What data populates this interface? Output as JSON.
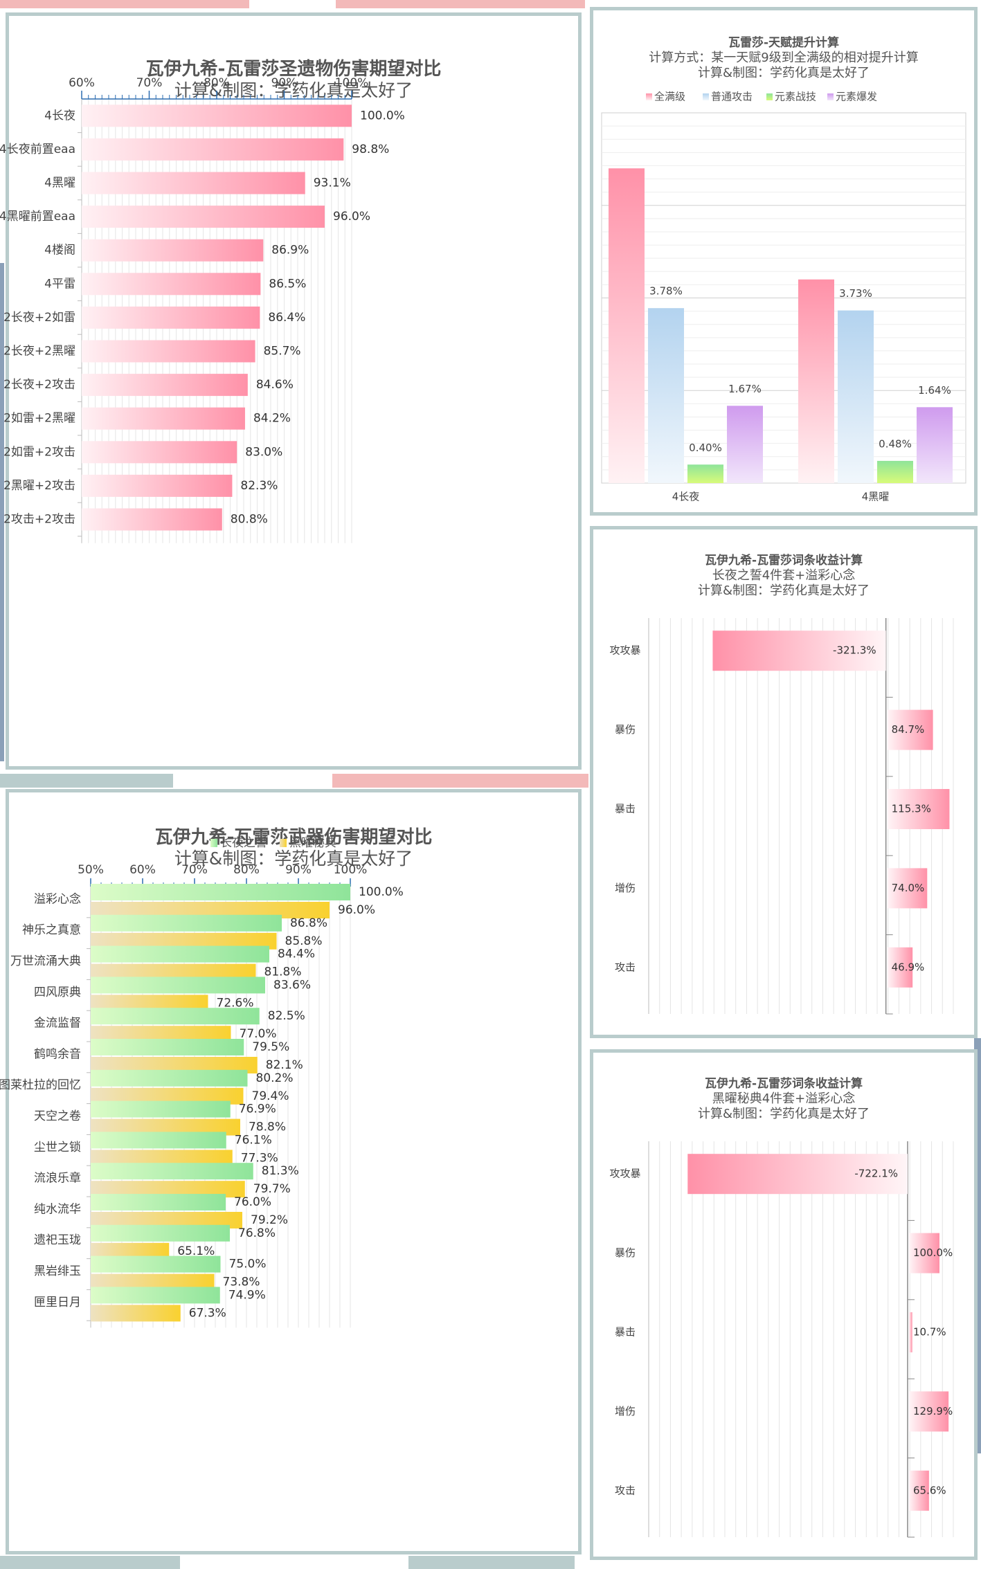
{
  "colors": {
    "pink": "#ff91a8",
    "pink_light": "#fff1f4",
    "blue_bar": "#b3d3ef",
    "green_bar": "#8fe49a",
    "green_light": "#dcfcc8",
    "yellow_bar": "#f9d12f",
    "yellow_light": "#eee2c2",
    "purple_bar": "#cf9bee",
    "frame": "#b9cccc"
  },
  "artifact_chart": {
    "title": "瓦伊九希-瓦雷莎圣遗物伤害期望对比",
    "subtitle": "计算&制图：学药化真是太好了",
    "chart_data": {
      "type": "bar",
      "orientation": "horizontal",
      "xlim": [
        60,
        100
      ],
      "ticks": [
        "60%",
        "70%",
        "80%",
        "90%",
        "100%"
      ],
      "categories": [
        "4长夜",
        "4长夜前置eaa",
        "4黑曜",
        "4黑曜前置eaa",
        "4楼阁",
        "4平雷",
        "2长夜+2如雷",
        "2长夜+2黑曜",
        "2长夜+2攻击",
        "2如雷+2黑曜",
        "2如雷+2攻击",
        "2黑曜+2攻击",
        "2攻击+2攻击"
      ],
      "values": [
        100.0,
        98.8,
        93.1,
        96.0,
        86.9,
        86.5,
        86.4,
        85.7,
        84.6,
        84.2,
        83.0,
        82.3,
        80.8
      ],
      "labels": [
        "100.0%",
        "98.8%",
        "93.1%",
        "96.0%",
        "86.9%",
        "86.5%",
        "86.4%",
        "85.7%",
        "84.6%",
        "84.2%",
        "83.0%",
        "82.3%",
        "80.8%"
      ],
      "grid": true
    }
  },
  "weapon_chart": {
    "title": "瓦伊九希-瓦雷莎武器伤害期望对比",
    "subtitle": "计算&制图：学药化真是太好了",
    "chart_data": {
      "type": "bar",
      "orientation": "horizontal",
      "xlim": [
        50,
        100
      ],
      "ticks": [
        "50%",
        "60%",
        "70%",
        "80%",
        "90%",
        "100%"
      ],
      "legend_position": "top",
      "categories": [
        "溢彩心念",
        "神乐之真意",
        "万世流涌大典",
        "四风原典",
        "金流监督",
        "鹤鸣余音",
        "图莱杜拉的回忆",
        "天空之卷",
        "尘世之锁",
        "流浪乐章",
        "纯水流华",
        "遗祀玉珑",
        "黑岩绯玉",
        "匣里日月"
      ],
      "series": [
        {
          "name": "长夜之誓",
          "values": [
            100.0,
            86.8,
            84.4,
            83.6,
            82.5,
            79.5,
            80.2,
            76.9,
            76.1,
            81.3,
            76.0,
            76.8,
            75.0,
            74.9
          ],
          "labels": [
            "100.0%",
            "86.8%",
            "84.4%",
            "83.6%",
            "82.5%",
            "79.5%",
            "80.2%",
            "76.9%",
            "76.1%",
            "81.3%",
            "76.0%",
            "76.8%",
            "75.0%",
            "74.9%"
          ]
        },
        {
          "name": "黑曜秘典",
          "values": [
            96.0,
            85.8,
            81.8,
            72.6,
            77.0,
            82.1,
            79.4,
            78.8,
            77.3,
            79.7,
            79.2,
            65.1,
            73.8,
            67.3
          ],
          "labels": [
            "96.0%",
            "85.8%",
            "81.8%",
            "72.6%",
            "77.0%",
            "82.1%",
            "79.4%",
            "78.8%",
            "77.3%",
            "79.7%",
            "79.2%",
            "65.1%",
            "73.8%",
            "67.3%"
          ]
        }
      ],
      "grid": true
    }
  },
  "talent_chart": {
    "title": "瓦雷莎-天赋提升计算",
    "subtitle": "计算方式：某一天赋9级到全满级的相对提升计算",
    "credit": "计算&制图：学药化真是太好了",
    "chart_data": {
      "type": "bar",
      "orientation": "vertical",
      "legend_position": "top",
      "categories": [
        "4长夜",
        "4黑曜"
      ],
      "series": [
        {
          "name": "全满级",
          "values": [
            6.8,
            4.4
          ],
          "labels": [
            "",
            ""
          ]
        },
        {
          "name": "普通攻击",
          "values": [
            3.78,
            3.73
          ],
          "labels": [
            "3.78%",
            "3.73%"
          ]
        },
        {
          "name": "元素战技",
          "values": [
            0.4,
            0.48
          ],
          "labels": [
            "0.40%",
            "0.48%"
          ]
        },
        {
          "name": "元素爆发",
          "values": [
            1.67,
            1.64
          ],
          "labels": [
            "1.67%",
            "1.64%"
          ]
        }
      ],
      "grid": true
    }
  },
  "substat_chart_1": {
    "title": "瓦伊九希-瓦雷莎词条收益计算",
    "subtitle": "长夜之誓4件套+溢彩心念",
    "credit": "计算&制图：学药化真是太好了",
    "chart_data": {
      "type": "bar",
      "orientation": "horizontal",
      "categories": [
        "攻攻暴",
        "暴伤",
        "暴击",
        "增伤",
        "攻击"
      ],
      "values": [
        -321.3,
        84.7,
        115.3,
        74.0,
        46.9
      ],
      "labels": [
        "-321.3%",
        "84.7%",
        "115.3%",
        "74.0%",
        "46.9%"
      ],
      "xlim": [
        -440,
        125
      ],
      "grid": true
    }
  },
  "substat_chart_2": {
    "title": "瓦伊九希-瓦雷莎词条收益计算",
    "subtitle": "黑曜秘典4件套+溢彩心念",
    "credit": "计算&制图：学药化真是太好了",
    "chart_data": {
      "type": "bar",
      "orientation": "horizontal",
      "categories": [
        "攻攻暴",
        "暴伤",
        "暴击",
        "增伤",
        "攻击"
      ],
      "values": [
        -722.1,
        100.0,
        10.7,
        129.9,
        65.6
      ],
      "labels": [
        "-722.1%",
        "100.0%",
        "10.7%",
        "129.9%",
        "65.6%"
      ],
      "xlim": [
        -850,
        150
      ],
      "grid": true
    }
  }
}
